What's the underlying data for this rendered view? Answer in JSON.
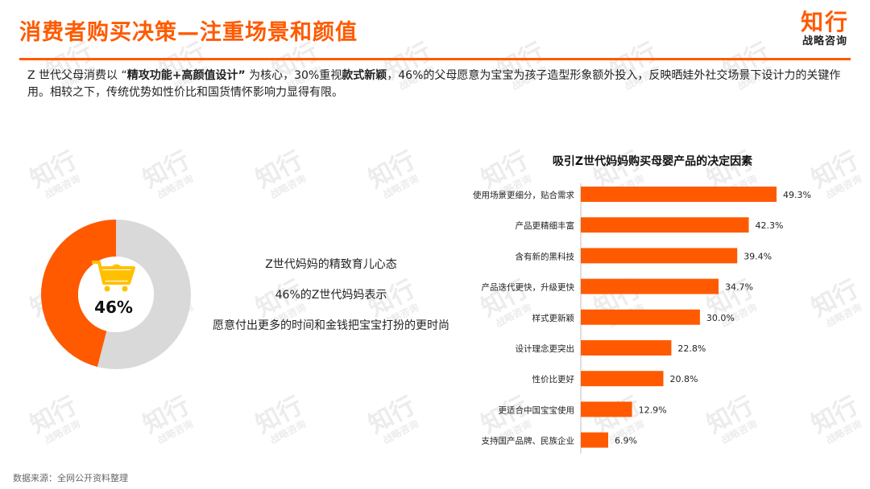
{
  "header": {
    "title": "消费者购买决策—注重场景和颜值",
    "logo_main": "知行",
    "logo_sub": "战略咨询"
  },
  "intro": {
    "p1": "Z 世代父母消费以 “",
    "b1": "精攻功能+高颜值设计”",
    "p2": " 为核心，30%重视",
    "b2": "款式新颖",
    "p3": "，46%的父母愿意为宝宝为孩子造型形象额外投入，反映晒娃外社交场景下设计力的关键作用。相较之下，传统优势如性价比和国货情怀影响力显得有限。"
  },
  "donut": {
    "value_label": "46%",
    "fraction": 0.46,
    "accent": "#ff5a00",
    "rest": "#d9d9d9",
    "icon": "shopping-cart-icon"
  },
  "middle": {
    "line1": "Z世代妈妈的精致育儿心态",
    "line2": "46%的Z世代妈妈表示",
    "line3": "愿意付出更多的时间和金钱把宝宝打扮的更时尚"
  },
  "chart_data": {
    "type": "bar",
    "orientation": "horizontal",
    "title": "吸引Z世代妈妈购买母婴产品的决定因素",
    "categories": [
      "使用场景更细分，贴合需求",
      "产品更精细丰富",
      "含有新的黑科技",
      "产品迭代更快，升级更快",
      "样式更新颖",
      "设计理念更突出",
      "性价比更好",
      "更适合中国宝宝使用",
      "支持国产品牌、民族企业"
    ],
    "values": [
      49.3,
      42.3,
      39.4,
      34.7,
      30.0,
      22.8,
      20.8,
      12.9,
      6.9
    ],
    "value_labels": [
      "49.3%",
      "42.3%",
      "39.4%",
      "34.7%",
      "30.0%",
      "22.8%",
      "20.8%",
      "12.9%",
      "6.9%"
    ],
    "color": "#ff5a00"
  },
  "source": "数据来源：全网公开资料整理",
  "watermark": {
    "main": "知行",
    "sub": "战略咨询"
  }
}
